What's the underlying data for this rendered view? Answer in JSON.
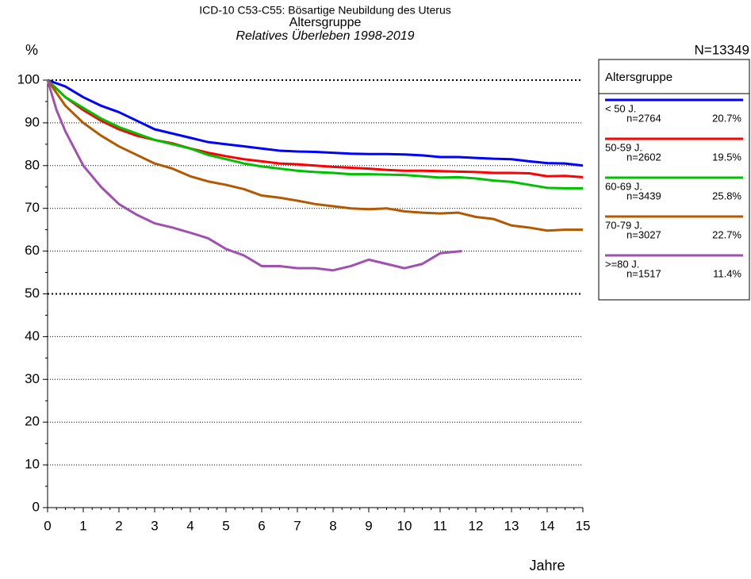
{
  "chart_data": {
    "type": "line",
    "title": "ICD-10 C53-C55: Bösartige Neubildung des Uterus",
    "subtitle": "Altersgruppe",
    "subtitle2": "Relatives Überleben 1998-2019",
    "y_label": "%",
    "x_label": "Jahre",
    "total": "N=13349",
    "legend_title": "Altersgruppe",
    "legend": "right",
    "grid": true,
    "emphasis_grid": [
      50,
      100
    ],
    "xlim": [
      0,
      15
    ],
    "ylim": [
      0,
      100
    ],
    "xticks": [
      0,
      1,
      2,
      3,
      4,
      5,
      6,
      7,
      8,
      9,
      10,
      11,
      12,
      13,
      14,
      15
    ],
    "yticks": [
      0,
      10,
      20,
      30,
      40,
      50,
      60,
      70,
      80,
      90,
      100
    ],
    "series": [
      {
        "name": "< 50 J.",
        "n": "n=2764",
        "share": "20.7%",
        "color": "#0000ff",
        "x": [
          0,
          0.5,
          1,
          1.5,
          2,
          2.5,
          3,
          3.5,
          4,
          4.5,
          5,
          5.5,
          6,
          6.5,
          7,
          7.5,
          8,
          8.5,
          9,
          9.5,
          10,
          10.5,
          11,
          11.5,
          12,
          12.5,
          13,
          13.5,
          14,
          14.5,
          15
        ],
        "values": [
          100,
          98.5,
          96,
          94,
          92.5,
          90.5,
          88.5,
          87.5,
          86.5,
          85.5,
          85,
          84.5,
          84,
          83.5,
          83.3,
          83.2,
          83,
          82.8,
          82.7,
          82.7,
          82.6,
          82.4,
          82,
          82,
          81.8,
          81.6,
          81.5,
          81,
          80.6,
          80.5,
          80
        ]
      },
      {
        "name": "50-59 J.",
        "n": "n=2602",
        "share": "19.5%",
        "color": "#ff0000",
        "x": [
          0,
          0.5,
          1,
          1.5,
          2,
          2.5,
          3,
          3.5,
          4,
          4.5,
          5,
          5.5,
          6,
          6.5,
          7,
          7.5,
          8,
          8.5,
          9,
          9.5,
          10,
          10.5,
          11,
          11.5,
          12,
          12.5,
          13,
          13.5,
          14,
          14.5,
          15
        ],
        "values": [
          100,
          96,
          93,
          90.5,
          88.5,
          87,
          86,
          85.2,
          84,
          83,
          82.2,
          81.5,
          81,
          80.5,
          80.3,
          80,
          79.7,
          79.5,
          79.3,
          79,
          78.8,
          78.8,
          78.7,
          78.6,
          78.5,
          78.3,
          78.3,
          78.2,
          77.5,
          77.6,
          77.3
        ]
      },
      {
        "name": "60-69 J.",
        "n": "n=3439",
        "share": "25.8%",
        "color": "#00c000",
        "x": [
          0,
          0.5,
          1,
          1.5,
          2,
          2.5,
          3,
          3.5,
          4,
          4.5,
          5,
          5.5,
          6,
          6.5,
          7,
          7.5,
          8,
          8.5,
          9,
          9.5,
          10,
          10.5,
          11,
          11.5,
          12,
          12.5,
          13,
          13.5,
          14,
          14.5,
          15
        ],
        "values": [
          100,
          96,
          93.5,
          91,
          89,
          87.5,
          86,
          85,
          84,
          82.5,
          81.5,
          80.5,
          79.8,
          79.3,
          78.8,
          78.5,
          78.3,
          78,
          78,
          77.9,
          77.8,
          77.5,
          77.2,
          77.3,
          77,
          76.5,
          76.2,
          75.5,
          74.8,
          74.7,
          74.7
        ]
      },
      {
        "name": "70-79 J.",
        "n": "n=3027",
        "share": "22.7%",
        "color": "#b35900",
        "x": [
          0,
          0.5,
          1,
          1.5,
          2,
          2.5,
          3,
          3.5,
          4,
          4.5,
          5,
          5.5,
          6,
          6.5,
          7,
          7.5,
          8,
          8.5,
          9,
          9.5,
          10,
          10.5,
          11,
          11.5,
          12,
          12.5,
          13,
          13.5,
          14,
          14.5,
          15
        ],
        "values": [
          100,
          94,
          90,
          87,
          84.5,
          82.5,
          80.5,
          79.3,
          77.5,
          76.3,
          75.5,
          74.5,
          73,
          72.5,
          71.8,
          71,
          70.5,
          70,
          69.8,
          70,
          69.3,
          69,
          68.8,
          69,
          68,
          67.5,
          66,
          65.5,
          64.8,
          65,
          65
        ]
      },
      {
        "name": ">=80 J.",
        "n": "n=1517",
        "share": "11.4%",
        "color": "#a050b0",
        "x": [
          0,
          0.25,
          0.5,
          1,
          1.5,
          2,
          2.5,
          3,
          3.5,
          4,
          4.5,
          5,
          5.5,
          6,
          6.5,
          7,
          7.5,
          8,
          8.5,
          9,
          9.5,
          10,
          10.5,
          11,
          11.6
        ],
        "values": [
          100,
          93,
          88,
          80,
          75,
          71,
          68.5,
          66.5,
          65.5,
          64.3,
          63,
          60.5,
          59,
          56.5,
          56.5,
          56,
          56,
          55.5,
          56.5,
          58,
          57,
          56,
          57,
          59.5,
          60
        ]
      }
    ]
  }
}
